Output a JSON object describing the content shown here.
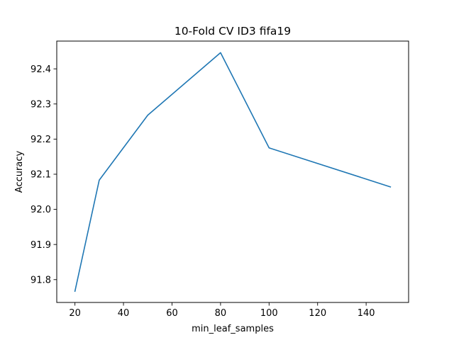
{
  "chart_data": {
    "type": "line",
    "title": "10-Fold CV  ID3 fifa19",
    "xlabel": "min_leaf_samples",
    "ylabel": "Accuracy",
    "xlim": [
      12.5,
      157.5
    ],
    "ylim": [
      91.735,
      92.479
    ],
    "xticks": [
      20,
      40,
      60,
      80,
      100,
      120,
      140
    ],
    "xtick_labels": [
      "20",
      "40",
      "60",
      "80",
      "100",
      "120",
      "140"
    ],
    "yticks": [
      91.8,
      91.9,
      92.0,
      92.1,
      92.2,
      92.3,
      92.4
    ],
    "ytick_labels": [
      "91.8",
      "91.9",
      "92.0",
      "92.1",
      "92.2",
      "92.3",
      "92.4"
    ],
    "grid": false,
    "series": [
      {
        "color": "#1f77b4",
        "x": [
          20,
          30,
          50,
          80,
          100,
          150
        ],
        "y": [
          91.767,
          92.083,
          92.268,
          92.446,
          92.175,
          92.064
        ]
      }
    ]
  }
}
